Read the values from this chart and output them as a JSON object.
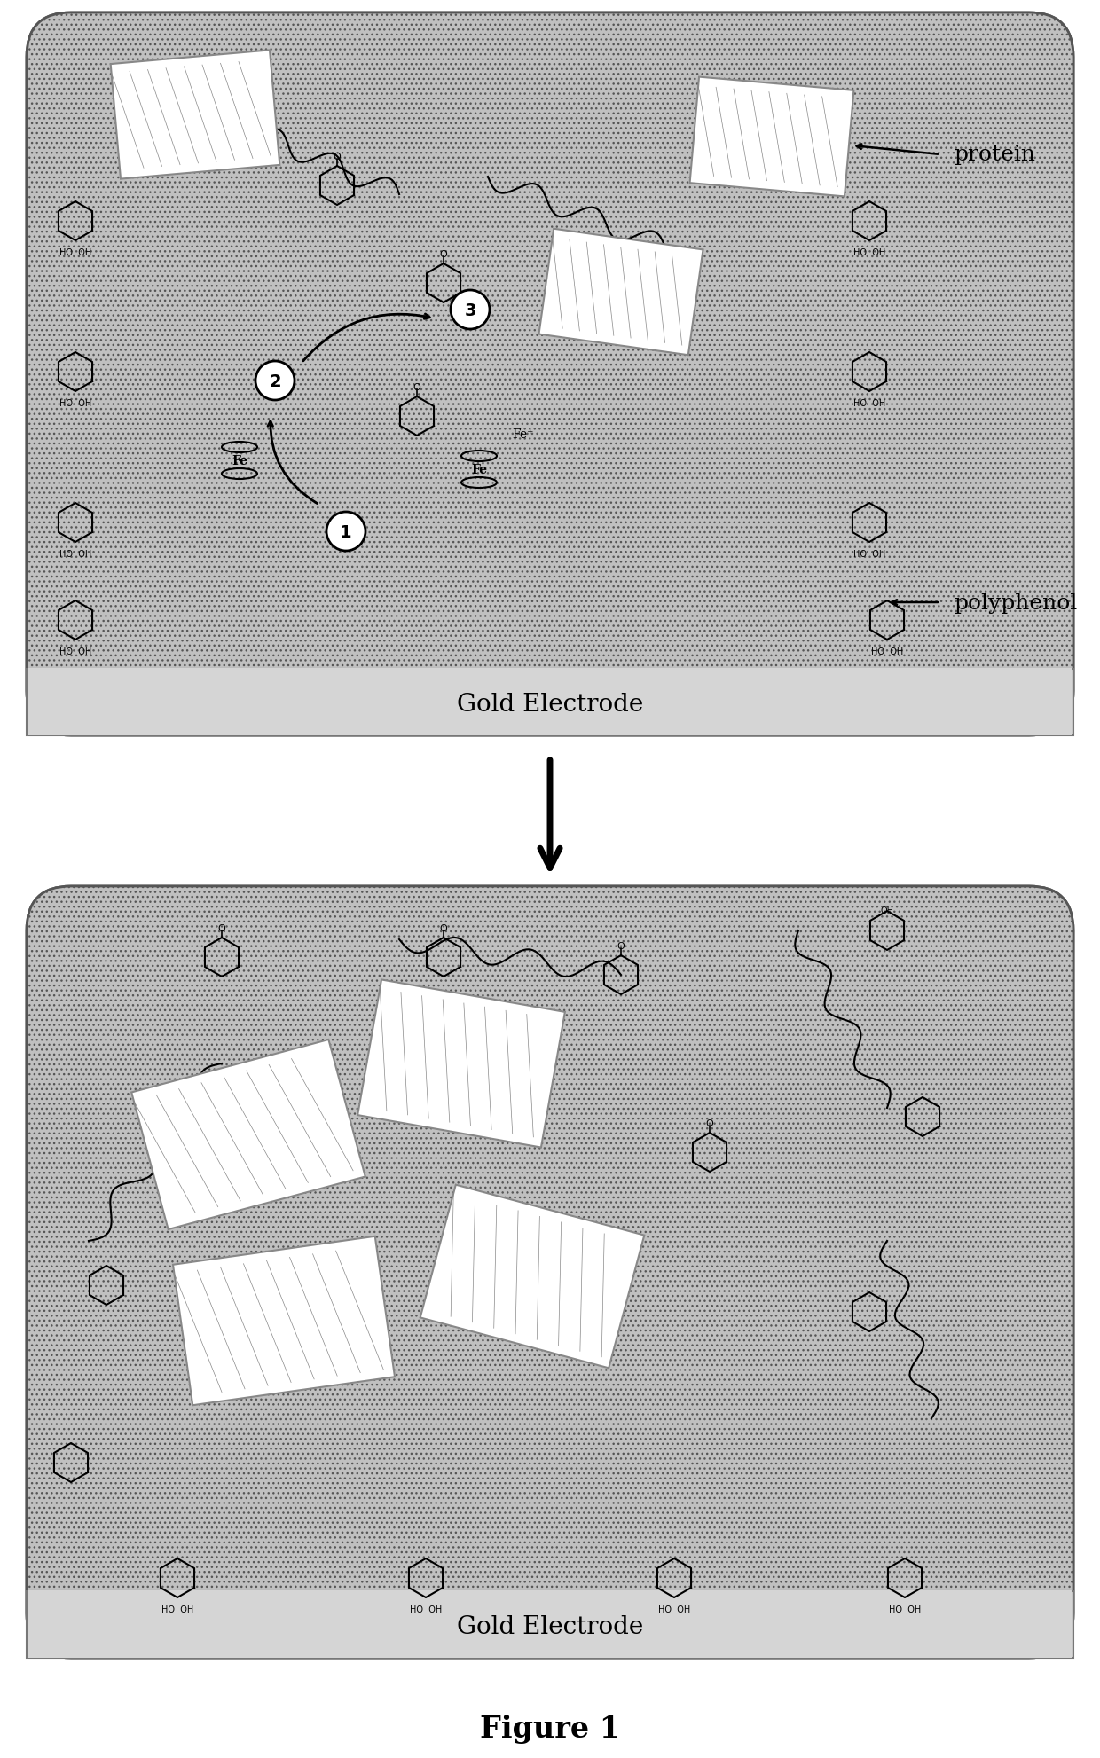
{
  "title": "Figure 1",
  "panel1_label": "Gold Electrode",
  "panel2_label": "Gold Electrode",
  "label_protein": "protein",
  "label_polyphenol": "polyphenol",
  "bg_color": "#b0b0b0",
  "panel_bg": "#c8c8c8",
  "electrode_color": "#d0d0d0",
  "white": "#ffffff",
  "black": "#000000",
  "arrow_color": "#1a1a1a",
  "fig_width": 12.4,
  "fig_height": 19.83,
  "dpi": 100
}
